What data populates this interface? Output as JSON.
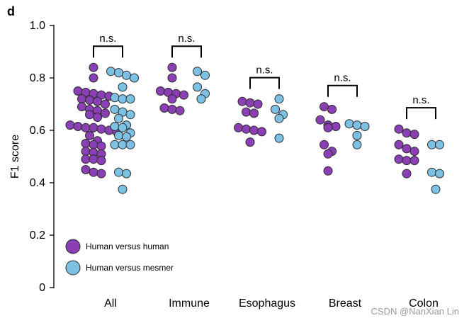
{
  "panel_letter": "d",
  "watermark": "CSDN @NanXian Lin",
  "colors": {
    "human_vs_human": "#8a3fb4",
    "human_vs_mesmer": "#7cc0e4",
    "outline": "#2b2b2b"
  },
  "chart_data": {
    "type": "scatter",
    "title": "",
    "xlabel": "",
    "ylabel": "F1 score",
    "ylim": [
      0,
      1.0
    ],
    "yticks": [
      "0",
      "0.2",
      "0.4",
      "0.6",
      "0.8",
      "1.0"
    ],
    "categories": [
      "All",
      "Immune",
      "Esophagus",
      "Breast",
      "Colon"
    ],
    "series": [
      {
        "name": "Human versus human",
        "color": "#8a3fb4",
        "values": [
          [
            0.84,
            0.8,
            0.75,
            0.745,
            0.74,
            0.735,
            0.73,
            0.72,
            0.715,
            0.71,
            0.7,
            0.69,
            0.68,
            0.675,
            0.665,
            0.66,
            0.65,
            0.62,
            0.615,
            0.61,
            0.61,
            0.605,
            0.6,
            0.595,
            0.58,
            0.56,
            0.55,
            0.545,
            0.54,
            0.52,
            0.515,
            0.51,
            0.49,
            0.49,
            0.485,
            0.45,
            0.44,
            0.435
          ],
          [
            0.84,
            0.8,
            0.75,
            0.745,
            0.74,
            0.735,
            0.72,
            0.685,
            0.68,
            0.675
          ],
          [
            0.71,
            0.705,
            0.7,
            0.67,
            0.665,
            0.61,
            0.605,
            0.6,
            0.595,
            0.555
          ],
          [
            0.69,
            0.68,
            0.64,
            0.62,
            0.615,
            0.61,
            0.545,
            0.52,
            0.51,
            0.445
          ],
          [
            0.605,
            0.59,
            0.585,
            0.545,
            0.53,
            0.52,
            0.49,
            0.485,
            0.485,
            0.435
          ]
        ]
      },
      {
        "name": "Human versus mesmer",
        "color": "#7cc0e4",
        "values": [
          [
            0.825,
            0.82,
            0.81,
            0.8,
            0.765,
            0.725,
            0.72,
            0.72,
            0.68,
            0.67,
            0.66,
            0.645,
            0.62,
            0.615,
            0.61,
            0.59,
            0.58,
            0.575,
            0.545,
            0.545,
            0.545,
            0.44,
            0.435,
            0.375
          ],
          [
            0.825,
            0.81,
            0.765,
            0.74,
            0.72
          ],
          [
            0.72,
            0.68,
            0.66,
            0.645,
            0.57
          ],
          [
            0.625,
            0.62,
            0.615,
            0.58,
            0.545
          ],
          [
            0.545,
            0.545,
            0.44,
            0.435,
            0.375
          ]
        ]
      }
    ],
    "significance": [
      "n.s.",
      "n.s.",
      "n.s.",
      "n.s.",
      "n.s."
    ],
    "legend_position": "bottom-left"
  }
}
